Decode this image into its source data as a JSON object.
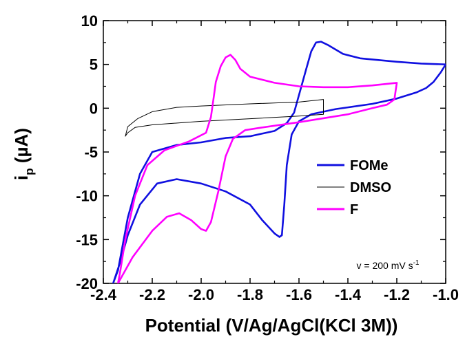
{
  "chart_data": {
    "type": "line",
    "xlabel": "Potential (V/Ag/AgCl(KCl 3M))",
    "ylabel_main": "i",
    "ylabel_sub": "p",
    "ylabel_unit": " (µA)",
    "xlim": [
      -2.4,
      -1.0
    ],
    "ylim": [
      -20,
      10
    ],
    "xticks": [
      -2.4,
      -2.2,
      -2.0,
      -1.8,
      -1.6,
      -1.4,
      -1.2,
      -1.0
    ],
    "yticks": [
      -20,
      -15,
      -10,
      -5,
      0,
      5,
      10
    ],
    "xtick_labels": [
      "-2.4",
      "-2.2",
      "-2.0",
      "-1.8",
      "-1.6",
      "-1.4",
      "-1.2",
      "-1.0"
    ],
    "ytick_labels": [
      "-20",
      "-15",
      "-10",
      "-5",
      "0",
      "5",
      "10"
    ],
    "legend_position": "right",
    "annotation": {
      "prefix": "v = 200 mV s",
      "superscript": "-1"
    },
    "series": [
      {
        "name": "FOMe",
        "color": "#1010E0",
        "points": [
          [
            -1.0,
            5.0
          ],
          [
            -1.02,
            4.1
          ],
          [
            -1.05,
            3.0
          ],
          [
            -1.08,
            2.3
          ],
          [
            -1.12,
            1.8
          ],
          [
            -1.2,
            1.1
          ],
          [
            -1.3,
            0.5
          ],
          [
            -1.4,
            0.1
          ],
          [
            -1.45,
            -0.1
          ],
          [
            -1.5,
            -0.4
          ],
          [
            -1.55,
            -0.7
          ],
          [
            -1.6,
            -1.5
          ],
          [
            -1.63,
            -3.0
          ],
          [
            -1.65,
            -6.5
          ],
          [
            -1.66,
            -11.0
          ],
          [
            -1.67,
            -14.5
          ],
          [
            -1.68,
            -14.7
          ],
          [
            -1.7,
            -14.3
          ],
          [
            -1.75,
            -12.8
          ],
          [
            -1.8,
            -11.0
          ],
          [
            -1.9,
            -9.5
          ],
          [
            -2.0,
            -8.6
          ],
          [
            -2.1,
            -8.1
          ],
          [
            -2.18,
            -8.6
          ],
          [
            -2.25,
            -11.0
          ],
          [
            -2.3,
            -14.5
          ],
          [
            -2.33,
            -17.5
          ],
          [
            -2.36,
            -20.0
          ],
          [
            -2.34,
            -18.5
          ],
          [
            -2.3,
            -12.5
          ],
          [
            -2.25,
            -7.5
          ],
          [
            -2.2,
            -5.0
          ],
          [
            -2.1,
            -4.2
          ],
          [
            -2.0,
            -3.9
          ],
          [
            -1.9,
            -3.4
          ],
          [
            -1.8,
            -3.2
          ],
          [
            -1.7,
            -2.6
          ],
          [
            -1.65,
            -1.7
          ],
          [
            -1.62,
            -0.5
          ],
          [
            -1.6,
            1.5
          ],
          [
            -1.57,
            4.5
          ],
          [
            -1.55,
            6.5
          ],
          [
            -1.53,
            7.5
          ],
          [
            -1.51,
            7.6
          ],
          [
            -1.48,
            7.2
          ],
          [
            -1.42,
            6.2
          ],
          [
            -1.35,
            5.7
          ],
          [
            -1.2,
            5.3
          ],
          [
            -1.1,
            5.1
          ],
          [
            -1.0,
            5.0
          ]
        ]
      },
      {
        "name": "DMSO",
        "color": "#000000",
        "points": [
          [
            -1.5,
            1.0
          ],
          [
            -1.6,
            0.7
          ],
          [
            -1.8,
            0.5
          ],
          [
            -2.0,
            0.25
          ],
          [
            -2.1,
            0.1
          ],
          [
            -2.2,
            -0.4
          ],
          [
            -2.26,
            -1.2
          ],
          [
            -2.3,
            -2.1
          ],
          [
            -2.31,
            -3.2
          ],
          [
            -2.3,
            -2.8
          ],
          [
            -2.27,
            -2.2
          ],
          [
            -2.2,
            -1.9
          ],
          [
            -2.0,
            -1.5
          ],
          [
            -1.8,
            -1.2
          ],
          [
            -1.6,
            -0.9
          ],
          [
            -1.5,
            -0.7
          ],
          [
            -1.5,
            1.0
          ]
        ]
      },
      {
        "name": "F",
        "color": "#FF00FF",
        "points": [
          [
            -1.2,
            2.9
          ],
          [
            -1.3,
            2.6
          ],
          [
            -1.4,
            2.4
          ],
          [
            -1.5,
            2.4
          ],
          [
            -1.6,
            2.5
          ],
          [
            -1.7,
            2.9
          ],
          [
            -1.8,
            3.6
          ],
          [
            -1.84,
            4.5
          ],
          [
            -1.86,
            5.5
          ],
          [
            -1.88,
            6.1
          ],
          [
            -1.9,
            5.8
          ],
          [
            -1.92,
            4.8
          ],
          [
            -1.94,
            3.0
          ],
          [
            -1.95,
            1.0
          ],
          [
            -1.96,
            -1.0
          ],
          [
            -1.98,
            -2.8
          ],
          [
            -2.05,
            -3.8
          ],
          [
            -2.15,
            -4.8
          ],
          [
            -2.22,
            -6.5
          ],
          [
            -2.27,
            -10.0
          ],
          [
            -2.31,
            -15.0
          ],
          [
            -2.33,
            -18.5
          ],
          [
            -2.34,
            -20.0
          ],
          [
            -2.32,
            -19.0
          ],
          [
            -2.28,
            -17.0
          ],
          [
            -2.2,
            -14.0
          ],
          [
            -2.14,
            -12.4
          ],
          [
            -2.09,
            -12.0
          ],
          [
            -2.04,
            -12.8
          ],
          [
            -2.0,
            -13.8
          ],
          [
            -1.98,
            -14.0
          ],
          [
            -1.96,
            -13.0
          ],
          [
            -1.93,
            -9.5
          ],
          [
            -1.9,
            -5.5
          ],
          [
            -1.87,
            -3.5
          ],
          [
            -1.82,
            -2.5
          ],
          [
            -1.75,
            -2.2
          ],
          [
            -1.6,
            -1.6
          ],
          [
            -1.4,
            -0.7
          ],
          [
            -1.3,
            0.0
          ],
          [
            -1.24,
            0.4
          ],
          [
            -1.21,
            1.0
          ],
          [
            -1.2,
            2.9
          ]
        ]
      }
    ]
  }
}
